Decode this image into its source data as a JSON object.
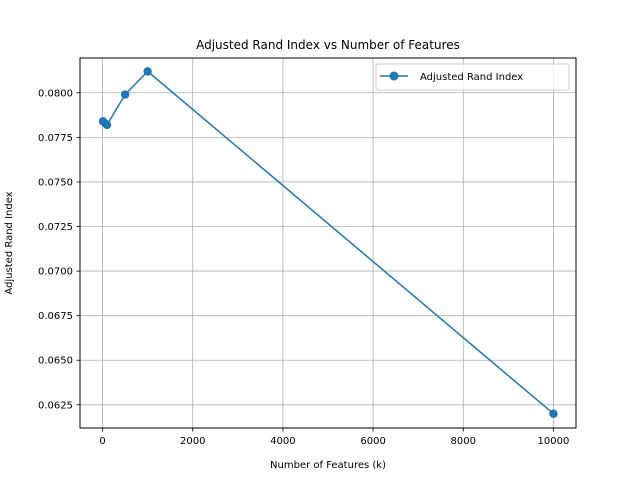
{
  "chart_data": {
    "type": "line",
    "title": "Adjusted Rand Index vs Number of Features",
    "xlabel": "Number of Features (k)",
    "ylabel": "Adjusted Rand Index",
    "xlim": [
      -500,
      10500
    ],
    "ylim": [
      0.0612,
      0.08195
    ],
    "xticks": [
      0,
      2000,
      4000,
      6000,
      8000,
      10000
    ],
    "xtick_labels": [
      "0",
      "2000",
      "4000",
      "6000",
      "8000",
      "10000"
    ],
    "yticks": [
      0.0625,
      0.065,
      0.0675,
      0.07,
      0.0725,
      0.075,
      0.0775,
      0.08
    ],
    "ytick_labels": [
      "0.0625",
      "0.0650",
      "0.0675",
      "0.0700",
      "0.0725",
      "0.0750",
      "0.0775",
      "0.0800"
    ],
    "grid": true,
    "legend_position": "top-right",
    "series": [
      {
        "name": "Adjusted Rand Index",
        "color": "#1f77b4",
        "marker": "circle",
        "x": [
          10,
          50,
          100,
          500,
          1000,
          10000
        ],
        "y": [
          0.0784,
          0.0783,
          0.0782,
          0.0799,
          0.0812,
          0.062
        ]
      }
    ]
  }
}
